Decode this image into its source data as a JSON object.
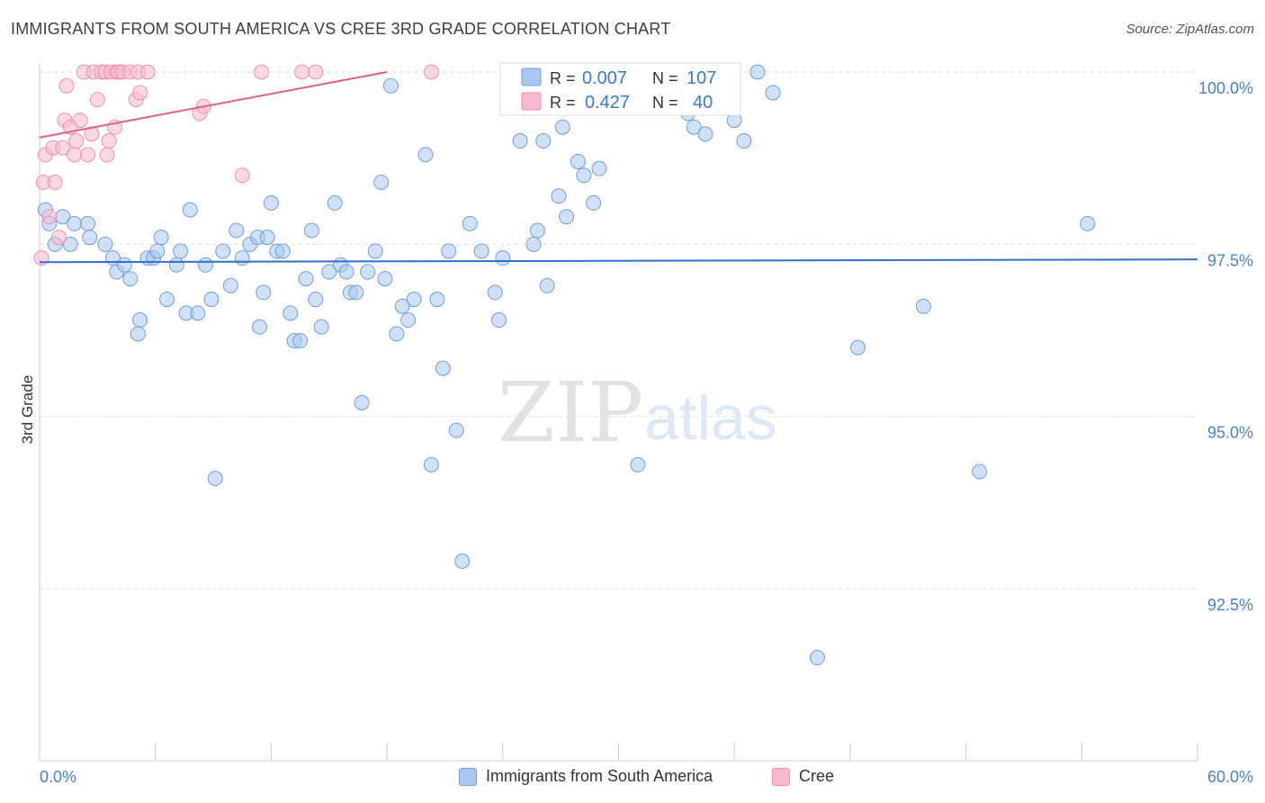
{
  "header": {
    "title": "IMMIGRANTS FROM SOUTH AMERICA VS CREE 3RD GRADE CORRELATION CHART",
    "source": "Source: ZipAtlas.com"
  },
  "watermark": {
    "zip": "ZIP",
    "atlas": "atlas"
  },
  "colors": {
    "blue_fill": "#a9c8ef",
    "blue_stroke": "#6f9fd8",
    "blue_line": "#2f6fce",
    "pink_fill": "#f7b9cd",
    "pink_stroke": "#ef8fb0",
    "pink_line": "#e0608a",
    "tick_text": "#4a7fd0",
    "grid": "#dddddd"
  },
  "legend_stats": [
    {
      "r_label": "R =",
      "r_value": "0.007",
      "n_label": "N =",
      "n_value": "107"
    },
    {
      "r_label": "R =",
      "r_value": "0.427",
      "n_label": "N =",
      "n_value": "40"
    }
  ],
  "chart_data": {
    "type": "scatter",
    "title": "IMMIGRANTS FROM SOUTH AMERICA VS CREE 3RD GRADE CORRELATION CHART",
    "xlabel": "",
    "ylabel": "3rd Grade",
    "xlim": [
      0,
      60
    ],
    "ylim": [
      90.0,
      100.2
    ],
    "x_tick_labels": [
      "0.0%",
      "60.0%"
    ],
    "y_ticks": [
      92.5,
      95.0,
      97.5,
      100.0
    ],
    "y_tick_labels": [
      "92.5%",
      "95.0%",
      "97.5%",
      "100.0%"
    ],
    "grid": true,
    "legend_position": "top-center and bottom",
    "series": [
      {
        "name": "Immigrants from South America",
        "color": "#a9c8ef",
        "trend": {
          "x": [
            0,
            60
          ],
          "y": [
            97.24,
            97.28
          ]
        },
        "points": [
          [
            0.3,
            98.0
          ],
          [
            0.5,
            97.8
          ],
          [
            0.8,
            97.5
          ],
          [
            1.2,
            97.9
          ],
          [
            1.6,
            97.5
          ],
          [
            1.8,
            97.8
          ],
          [
            2.5,
            97.8
          ],
          [
            2.6,
            97.6
          ],
          [
            3.4,
            97.5
          ],
          [
            3.8,
            97.3
          ],
          [
            4.0,
            97.1
          ],
          [
            4.4,
            97.2
          ],
          [
            4.7,
            97.0
          ],
          [
            5.1,
            96.2
          ],
          [
            5.2,
            96.4
          ],
          [
            5.6,
            97.3
          ],
          [
            5.9,
            97.3
          ],
          [
            6.1,
            97.4
          ],
          [
            6.3,
            97.6
          ],
          [
            6.6,
            96.7
          ],
          [
            7.1,
            97.2
          ],
          [
            7.3,
            97.4
          ],
          [
            7.6,
            96.5
          ],
          [
            7.8,
            98.0
          ],
          [
            8.2,
            96.5
          ],
          [
            8.6,
            97.2
          ],
          [
            8.9,
            96.7
          ],
          [
            9.1,
            94.1
          ],
          [
            9.5,
            97.4
          ],
          [
            9.9,
            96.9
          ],
          [
            10.2,
            97.7
          ],
          [
            10.5,
            97.3
          ],
          [
            10.9,
            97.5
          ],
          [
            11.3,
            97.6
          ],
          [
            11.4,
            96.3
          ],
          [
            11.6,
            96.8
          ],
          [
            11.8,
            97.6
          ],
          [
            12.0,
            98.1
          ],
          [
            12.3,
            97.4
          ],
          [
            12.6,
            97.4
          ],
          [
            13.0,
            96.5
          ],
          [
            13.2,
            96.1
          ],
          [
            13.5,
            96.1
          ],
          [
            13.8,
            97.0
          ],
          [
            14.1,
            97.7
          ],
          [
            14.3,
            96.7
          ],
          [
            14.6,
            96.3
          ],
          [
            15.0,
            97.1
          ],
          [
            15.3,
            98.1
          ],
          [
            15.6,
            97.2
          ],
          [
            15.9,
            97.1
          ],
          [
            16.1,
            96.8
          ],
          [
            16.4,
            96.8
          ],
          [
            16.7,
            95.2
          ],
          [
            17.0,
            97.1
          ],
          [
            17.4,
            97.4
          ],
          [
            17.7,
            98.4
          ],
          [
            17.9,
            97.0
          ],
          [
            18.2,
            99.8
          ],
          [
            18.5,
            96.2
          ],
          [
            18.8,
            96.6
          ],
          [
            19.1,
            96.4
          ],
          [
            19.4,
            96.7
          ],
          [
            20.0,
            98.8
          ],
          [
            20.3,
            94.3
          ],
          [
            20.6,
            96.7
          ],
          [
            20.9,
            95.7
          ],
          [
            21.2,
            97.4
          ],
          [
            21.6,
            94.8
          ],
          [
            21.9,
            92.9
          ],
          [
            22.3,
            97.8
          ],
          [
            22.9,
            97.4
          ],
          [
            23.6,
            96.8
          ],
          [
            23.8,
            96.4
          ],
          [
            24.0,
            97.3
          ],
          [
            24.5,
            100.0
          ],
          [
            24.9,
            99.0
          ],
          [
            25.6,
            97.5
          ],
          [
            25.8,
            97.7
          ],
          [
            26.1,
            99.0
          ],
          [
            26.3,
            96.9
          ],
          [
            26.9,
            98.2
          ],
          [
            27.1,
            99.2
          ],
          [
            27.3,
            97.9
          ],
          [
            27.9,
            98.7
          ],
          [
            28.2,
            98.5
          ],
          [
            28.7,
            98.1
          ],
          [
            29.0,
            98.6
          ],
          [
            29.6,
            99.8
          ],
          [
            29.9,
            99.5
          ],
          [
            31.0,
            94.3
          ],
          [
            31.7,
            99.9
          ],
          [
            32.5,
            99.6
          ],
          [
            33.0,
            99.5
          ],
          [
            33.6,
            99.4
          ],
          [
            33.9,
            99.2
          ],
          [
            34.5,
            99.1
          ],
          [
            35.5,
            99.7
          ],
          [
            36.0,
            99.3
          ],
          [
            36.5,
            99.0
          ],
          [
            37.2,
            100.0
          ],
          [
            38.0,
            99.7
          ],
          [
            40.3,
            91.5
          ],
          [
            42.4,
            96.0
          ],
          [
            45.8,
            96.6
          ],
          [
            48.7,
            94.2
          ],
          [
            54.3,
            97.8
          ]
        ]
      },
      {
        "name": "Cree",
        "color": "#f7b9cd",
        "trend": {
          "x": [
            0,
            18
          ],
          "y": [
            99.05,
            100.0
          ]
        },
        "points": [
          [
            0.1,
            97.3
          ],
          [
            0.2,
            98.4
          ],
          [
            0.3,
            98.8
          ],
          [
            0.5,
            97.9
          ],
          [
            0.7,
            98.9
          ],
          [
            0.8,
            98.4
          ],
          [
            1.0,
            97.6
          ],
          [
            1.2,
            98.9
          ],
          [
            1.3,
            99.3
          ],
          [
            1.4,
            99.8
          ],
          [
            1.6,
            99.2
          ],
          [
            1.8,
            98.8
          ],
          [
            1.9,
            99.0
          ],
          [
            2.1,
            99.3
          ],
          [
            2.3,
            100.0
          ],
          [
            2.5,
            98.8
          ],
          [
            2.7,
            99.1
          ],
          [
            2.8,
            100.0
          ],
          [
            3.0,
            99.6
          ],
          [
            3.2,
            100.0
          ],
          [
            3.4,
            100.0
          ],
          [
            3.5,
            98.8
          ],
          [
            3.6,
            99.0
          ],
          [
            3.7,
            100.0
          ],
          [
            3.9,
            99.2
          ],
          [
            4.0,
            100.0
          ],
          [
            4.1,
            100.0
          ],
          [
            4.3,
            100.0
          ],
          [
            4.7,
            100.0
          ],
          [
            5.0,
            99.6
          ],
          [
            5.1,
            100.0
          ],
          [
            5.2,
            99.7
          ],
          [
            5.6,
            100.0
          ],
          [
            8.3,
            99.4
          ],
          [
            8.5,
            99.5
          ],
          [
            10.5,
            98.5
          ],
          [
            11.5,
            100.0
          ],
          [
            13.6,
            100.0
          ],
          [
            14.3,
            100.0
          ],
          [
            20.3,
            100.0
          ]
        ]
      }
    ]
  },
  "bottom_legend": [
    {
      "label": "Immigrants from South America"
    },
    {
      "label": "Cree"
    }
  ]
}
